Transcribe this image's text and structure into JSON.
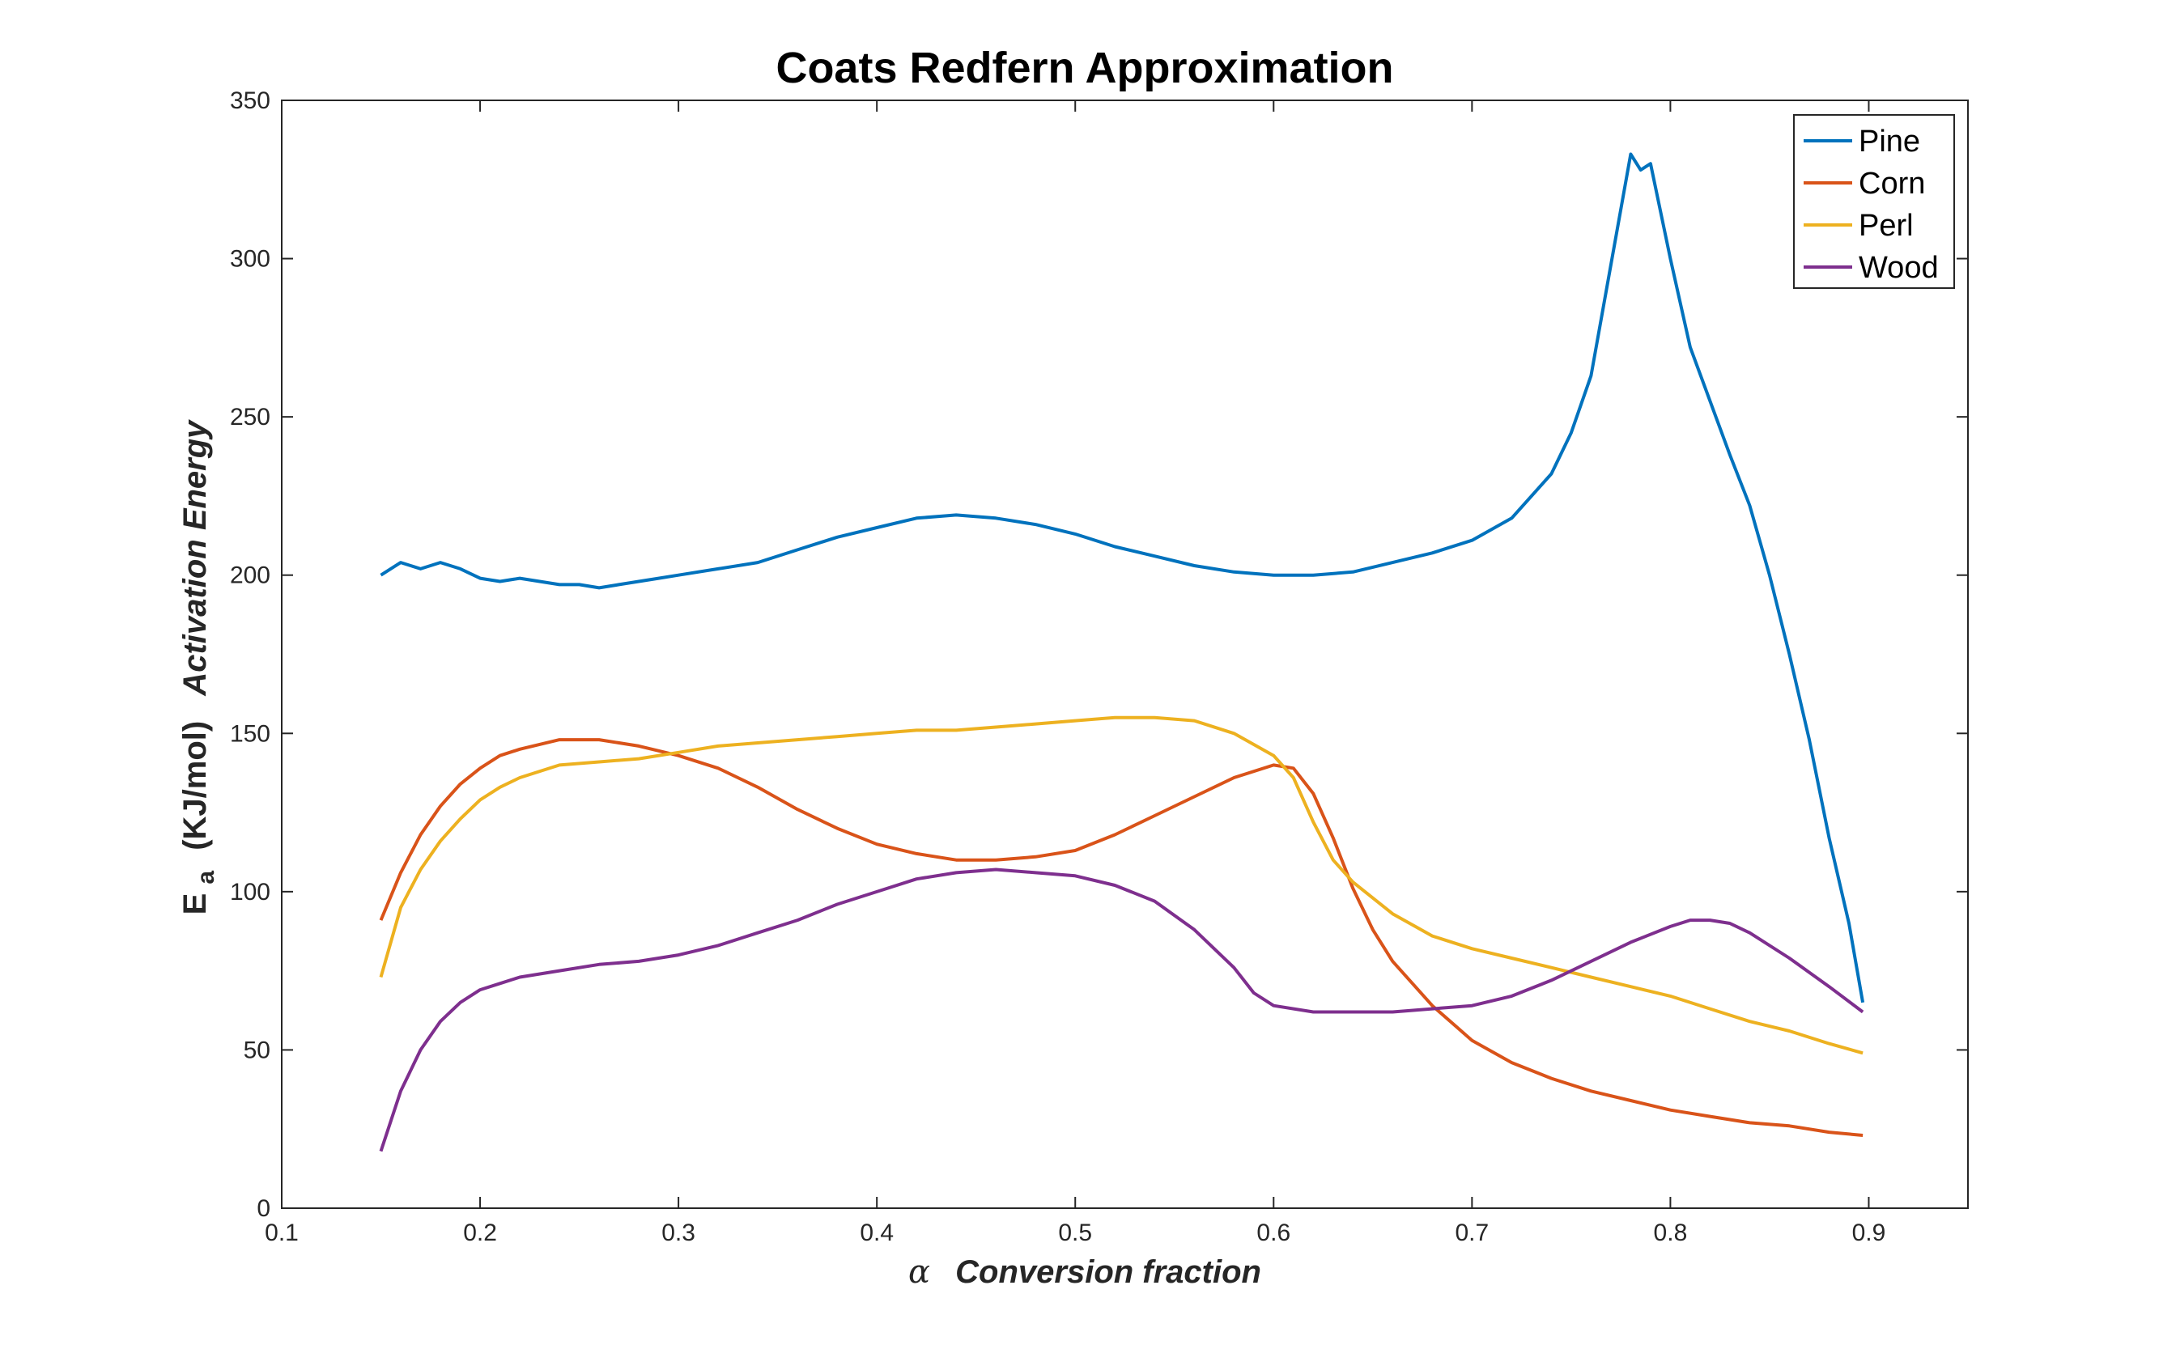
{
  "chart_data": {
    "type": "line",
    "title": "Coats Redfern Approximation",
    "xlabel_symbol": "α",
    "xlabel_text": "Conversion fraction",
    "ylabel_main": "E",
    "ylabel_sub": "a",
    "ylabel_unit": "(KJ/mol)",
    "ylabel_text": "Activation Energy",
    "xlim": [
      0.1,
      0.95
    ],
    "ylim": [
      0,
      350
    ],
    "xticks": [
      0.1,
      0.2,
      0.3,
      0.4,
      0.5,
      0.6,
      0.7,
      0.8,
      0.9
    ],
    "yticks": [
      0,
      50,
      100,
      150,
      200,
      250,
      300,
      350
    ],
    "xtick_labels": [
      "0.1",
      "0.2",
      "0.3",
      "0.4",
      "0.5",
      "0.6",
      "0.7",
      "0.8",
      "0.9"
    ],
    "ytick_labels": [
      "0",
      "50",
      "100",
      "150",
      "200",
      "250",
      "300",
      "350"
    ],
    "grid": false,
    "legend_position": "top-right",
    "series": [
      {
        "name": "Pine",
        "color": "#0072BD",
        "x": [
          0.15,
          0.16,
          0.17,
          0.18,
          0.19,
          0.2,
          0.21,
          0.22,
          0.23,
          0.24,
          0.25,
          0.26,
          0.27,
          0.28,
          0.29,
          0.3,
          0.32,
          0.34,
          0.36,
          0.38,
          0.4,
          0.42,
          0.44,
          0.46,
          0.48,
          0.5,
          0.52,
          0.54,
          0.56,
          0.58,
          0.6,
          0.62,
          0.64,
          0.66,
          0.68,
          0.7,
          0.72,
          0.74,
          0.75,
          0.76,
          0.77,
          0.78,
          0.785,
          0.79,
          0.8,
          0.81,
          0.82,
          0.83,
          0.84,
          0.85,
          0.86,
          0.87,
          0.88,
          0.89,
          0.897
        ],
        "y": [
          200,
          204,
          202,
          204,
          202,
          199,
          198,
          199,
          198,
          197,
          197,
          196,
          197,
          198,
          199,
          200,
          202,
          204,
          208,
          212,
          215,
          218,
          219,
          218,
          216,
          213,
          209,
          206,
          203,
          201,
          200,
          200,
          201,
          204,
          207,
          211,
          218,
          232,
          245,
          263,
          298,
          333,
          328,
          330,
          300,
          272,
          255,
          238,
          222,
          200,
          175,
          148,
          117,
          90,
          65
        ]
      },
      {
        "name": "Corn",
        "color": "#D95319",
        "x": [
          0.15,
          0.16,
          0.17,
          0.18,
          0.19,
          0.2,
          0.21,
          0.22,
          0.24,
          0.26,
          0.28,
          0.3,
          0.32,
          0.34,
          0.36,
          0.38,
          0.4,
          0.42,
          0.44,
          0.46,
          0.48,
          0.5,
          0.52,
          0.54,
          0.56,
          0.58,
          0.6,
          0.61,
          0.62,
          0.63,
          0.64,
          0.65,
          0.66,
          0.68,
          0.7,
          0.72,
          0.74,
          0.76,
          0.78,
          0.8,
          0.82,
          0.84,
          0.86,
          0.88,
          0.897
        ],
        "y": [
          91,
          106,
          118,
          127,
          134,
          139,
          143,
          145,
          148,
          148,
          146,
          143,
          139,
          133,
          126,
          120,
          115,
          112,
          110,
          110,
          111,
          113,
          118,
          124,
          130,
          136,
          140,
          139,
          131,
          117,
          101,
          88,
          78,
          64,
          53,
          46,
          41,
          37,
          34,
          31,
          29,
          27,
          26,
          24,
          23
        ]
      },
      {
        "name": "Perl",
        "color": "#EDB120",
        "x": [
          0.15,
          0.16,
          0.17,
          0.18,
          0.19,
          0.2,
          0.21,
          0.22,
          0.24,
          0.26,
          0.28,
          0.3,
          0.32,
          0.34,
          0.36,
          0.38,
          0.4,
          0.42,
          0.44,
          0.46,
          0.48,
          0.5,
          0.52,
          0.54,
          0.56,
          0.58,
          0.6,
          0.61,
          0.62,
          0.63,
          0.64,
          0.66,
          0.68,
          0.7,
          0.72,
          0.74,
          0.76,
          0.78,
          0.8,
          0.82,
          0.84,
          0.86,
          0.88,
          0.897
        ],
        "y": [
          73,
          95,
          107,
          116,
          123,
          129,
          133,
          136,
          140,
          141,
          142,
          144,
          146,
          147,
          148,
          149,
          150,
          151,
          151,
          152,
          153,
          154,
          155,
          155,
          154,
          150,
          143,
          136,
          122,
          110,
          103,
          93,
          86,
          82,
          79,
          76,
          73,
          70,
          67,
          63,
          59,
          56,
          52,
          49
        ]
      },
      {
        "name": "Wood",
        "color": "#7E2F8E",
        "x": [
          0.15,
          0.16,
          0.17,
          0.18,
          0.19,
          0.2,
          0.21,
          0.22,
          0.24,
          0.26,
          0.28,
          0.3,
          0.32,
          0.34,
          0.36,
          0.38,
          0.4,
          0.42,
          0.44,
          0.46,
          0.48,
          0.5,
          0.52,
          0.54,
          0.56,
          0.58,
          0.59,
          0.6,
          0.62,
          0.64,
          0.66,
          0.68,
          0.7,
          0.72,
          0.74,
          0.76,
          0.78,
          0.8,
          0.81,
          0.82,
          0.83,
          0.84,
          0.86,
          0.88,
          0.897
        ],
        "y": [
          18,
          37,
          50,
          59,
          65,
          69,
          71,
          73,
          75,
          77,
          78,
          80,
          83,
          87,
          91,
          96,
          100,
          104,
          106,
          107,
          106,
          105,
          102,
          97,
          88,
          76,
          68,
          64,
          62,
          62,
          62,
          63,
          64,
          67,
          72,
          78,
          84,
          89,
          91,
          91,
          90,
          87,
          79,
          70,
          62
        ]
      }
    ]
  }
}
